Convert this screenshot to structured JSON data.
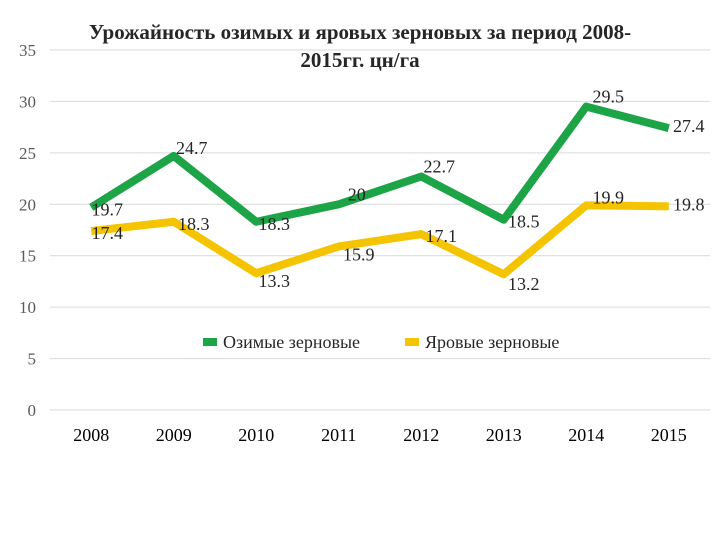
{
  "chart_data": {
    "type": "line",
    "title": "Урожайность озимых и яровых зерновых за период 2008-2015гг. цн/га",
    "categories": [
      "2008",
      "2009",
      "2010",
      "2011",
      "2012",
      "2013",
      "2014",
      "2015"
    ],
    "y_ticks": [
      "0",
      "5",
      "10",
      "15",
      "20",
      "25",
      "30",
      "35"
    ],
    "ylim": [
      0,
      35
    ],
    "grid": true,
    "legend_position": "bottom-center",
    "series": [
      {
        "name": "Озимые зерновые",
        "color": "#1DA446",
        "values": [
          19.7,
          24.7,
          18.3,
          20,
          22.7,
          18.5,
          29.5,
          27.4
        ],
        "labels": [
          "19.7",
          "24.7",
          "18.3",
          "20",
          "22.7",
          "18.5",
          "29.5",
          "27.4"
        ]
      },
      {
        "name": "Яровые зерновые",
        "color": "#F5C400",
        "values": [
          17.4,
          18.3,
          13.3,
          15.9,
          17.1,
          13.2,
          19.9,
          19.8
        ],
        "labels": [
          "17.4",
          "18.3",
          "13.3",
          "15.9",
          "17.1",
          "13.2",
          "19.9",
          "19.8"
        ]
      }
    ]
  }
}
